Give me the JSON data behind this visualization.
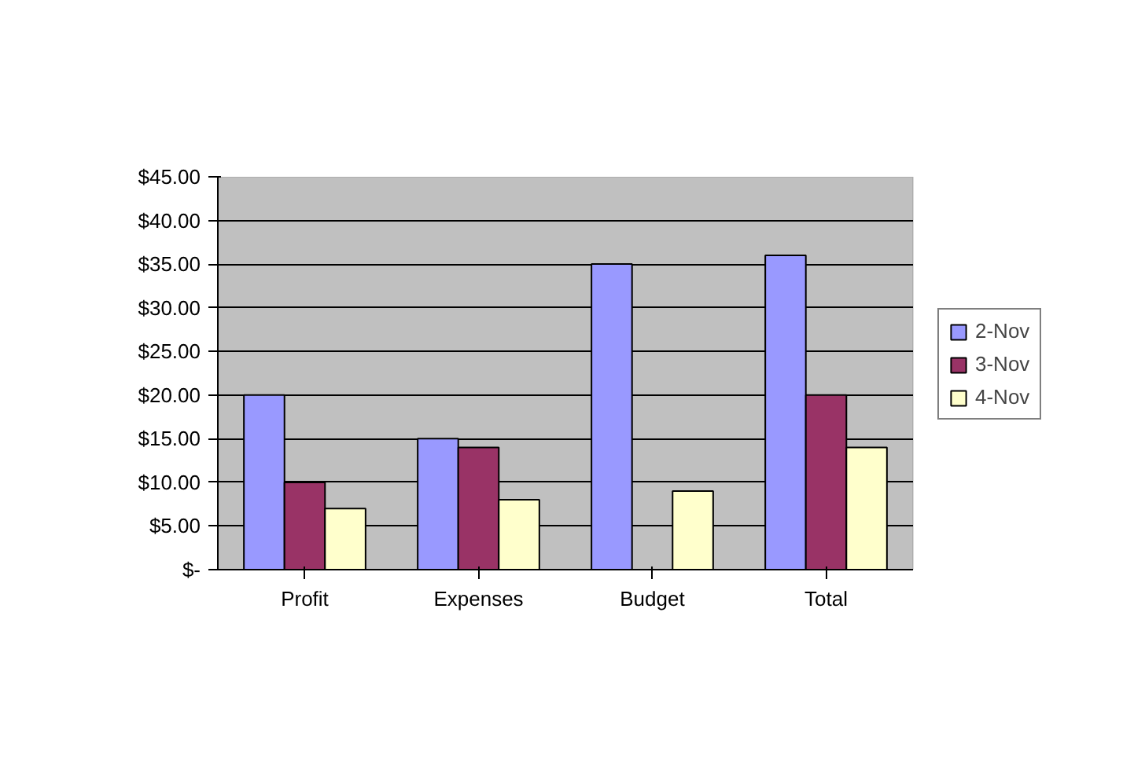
{
  "chart_data": {
    "type": "bar",
    "categories": [
      "Profit",
      "Expenses",
      "Budget",
      "Total"
    ],
    "series": [
      {
        "name": "2-Nov",
        "color": "#9999ff",
        "values": [
          20,
          15,
          35,
          36
        ]
      },
      {
        "name": "3-Nov",
        "color": "#993366",
        "values": [
          10,
          14,
          null,
          20
        ]
      },
      {
        "name": "4-Nov",
        "color": "#ffffcc",
        "values": [
          7,
          8,
          9,
          14
        ]
      }
    ],
    "ylim": [
      0,
      45
    ],
    "yticks": [
      {
        "value": 0,
        "label": "$-"
      },
      {
        "value": 5,
        "label": "$5.00"
      },
      {
        "value": 10,
        "label": "$10.00"
      },
      {
        "value": 15,
        "label": "$15.00"
      },
      {
        "value": 20,
        "label": "$20.00"
      },
      {
        "value": 25,
        "label": "$25.00"
      },
      {
        "value": 30,
        "label": "$30.00"
      },
      {
        "value": 35,
        "label": "$35.00"
      },
      {
        "value": 40,
        "label": "$40.00"
      },
      {
        "value": 45,
        "label": "$45.00"
      }
    ],
    "grid": "y",
    "legend": "right"
  }
}
